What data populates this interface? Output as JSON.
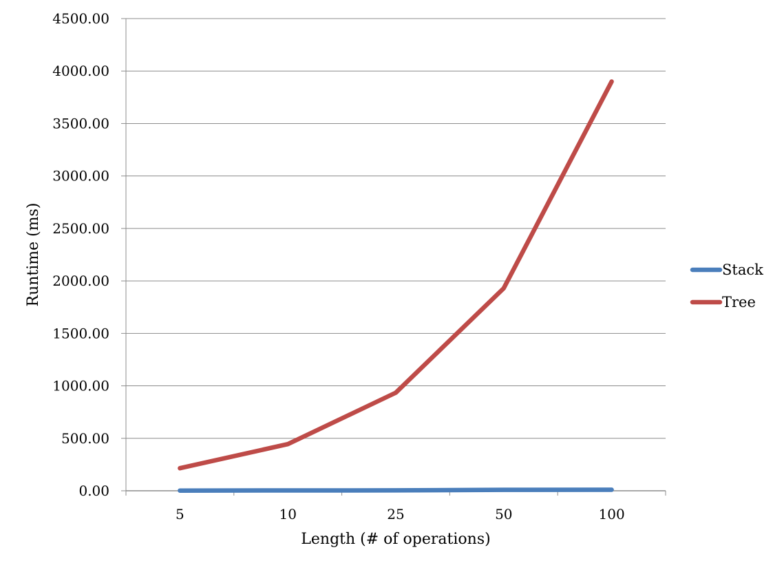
{
  "chart_data": {
    "type": "line",
    "categories": [
      "5",
      "10",
      "25",
      "50",
      "100"
    ],
    "series": [
      {
        "name": "Stack",
        "color": "#4A7EBB",
        "values": [
          2,
          3,
          4,
          9,
          10
        ]
      },
      {
        "name": "Tree",
        "color": "#BE4B48",
        "values": [
          215,
          445,
          935,
          1930,
          3900
        ]
      }
    ],
    "xlabel": "Length (# of operations)",
    "ylabel": "Runtime (ms)",
    "ylim": [
      0,
      4500
    ],
    "yticks": [
      "0.00",
      "500.00",
      "1000.00",
      "1500.00",
      "2000.00",
      "2500.00",
      "3000.00",
      "3500.00",
      "4000.00",
      "4500.00"
    ],
    "grid": true,
    "legend": "right"
  }
}
